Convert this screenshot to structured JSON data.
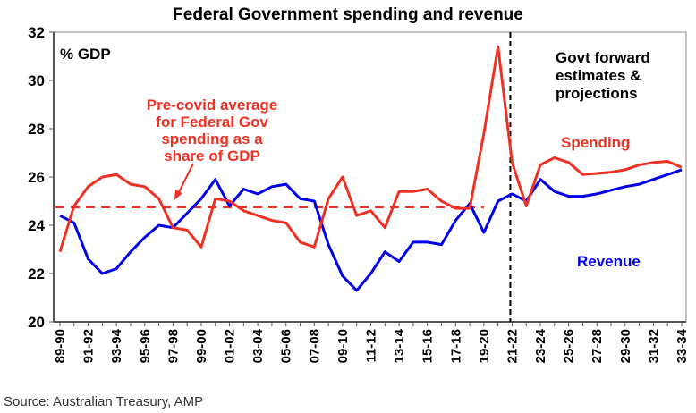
{
  "chart_data": {
    "type": "line",
    "title": "Federal Government spending and revenue",
    "ylabel": "% GDP",
    "ylim": [
      20,
      32
    ],
    "yticks": [
      20,
      22,
      24,
      26,
      28,
      30,
      32
    ],
    "x": [
      "89-90",
      "90-91",
      "91-92",
      "92-93",
      "93-94",
      "94-95",
      "95-96",
      "96-97",
      "97-98",
      "98-99",
      "99-00",
      "00-01",
      "01-02",
      "02-03",
      "03-04",
      "04-05",
      "05-06",
      "06-07",
      "07-08",
      "08-09",
      "09-10",
      "10-11",
      "11-12",
      "12-13",
      "13-14",
      "14-15",
      "15-16",
      "16-17",
      "17-18",
      "18-19",
      "19-20",
      "20-21",
      "21-22",
      "22-23",
      "23-24",
      "24-25",
      "25-26",
      "26-27",
      "27-28",
      "28-29",
      "29-30",
      "30-31",
      "31-32",
      "32-33",
      "33-34"
    ],
    "xtick_labels": [
      "89-90",
      "91-92",
      "93-94",
      "95-96",
      "97-98",
      "99-00",
      "01-02",
      "03-04",
      "05-06",
      "07-08",
      "09-10",
      "11-12",
      "13-14",
      "15-16",
      "17-18",
      "19-20",
      "21-22",
      "23-24",
      "25-26",
      "27-28",
      "29-30",
      "31-32",
      "33-34"
    ],
    "series": [
      {
        "name": "Spending",
        "color": "#ee3124",
        "values": [
          22.9,
          24.8,
          25.6,
          26.0,
          26.1,
          25.7,
          25.6,
          25.1,
          23.9,
          23.8,
          23.1,
          25.1,
          25.0,
          24.6,
          24.4,
          24.2,
          24.1,
          23.3,
          23.1,
          25.1,
          26.0,
          24.4,
          24.6,
          23.9,
          25.4,
          25.4,
          25.5,
          25.0,
          24.7,
          24.7,
          27.8,
          31.4,
          26.6,
          24.8,
          26.5,
          26.8,
          26.6,
          26.1,
          26.15,
          26.2,
          26.3,
          26.5,
          26.6,
          26.65,
          26.4
        ]
      },
      {
        "name": "Revenue",
        "color": "#0000ee",
        "values": [
          24.4,
          24.1,
          22.6,
          22.0,
          22.2,
          22.9,
          23.5,
          24.0,
          23.9,
          24.5,
          25.1,
          25.9,
          24.8,
          25.5,
          25.3,
          25.6,
          25.7,
          25.1,
          25.0,
          23.2,
          21.9,
          21.3,
          22.0,
          22.9,
          22.5,
          23.3,
          23.3,
          23.2,
          24.2,
          24.9,
          23.7,
          25.0,
          25.3,
          25.0,
          25.9,
          25.4,
          25.2,
          25.2,
          25.3,
          25.45,
          25.6,
          25.7,
          25.9,
          26.1,
          26.3
        ]
      }
    ],
    "average_line": {
      "value": 24.75,
      "from": "89-90",
      "to": "19-20",
      "color": "#ee3124"
    },
    "forecast_divider": {
      "at": "21-22"
    },
    "annotations": {
      "avg_label": [
        "Pre-covid average",
        "for Federal Gov",
        "spending as a",
        "share of GDP"
      ],
      "forecast_label": [
        "Govt forward",
        "estimates &",
        "projections"
      ],
      "spending_label": "Spending",
      "revenue_label": "Revenue"
    },
    "source": "Source: Australian Treasury, AMP"
  }
}
